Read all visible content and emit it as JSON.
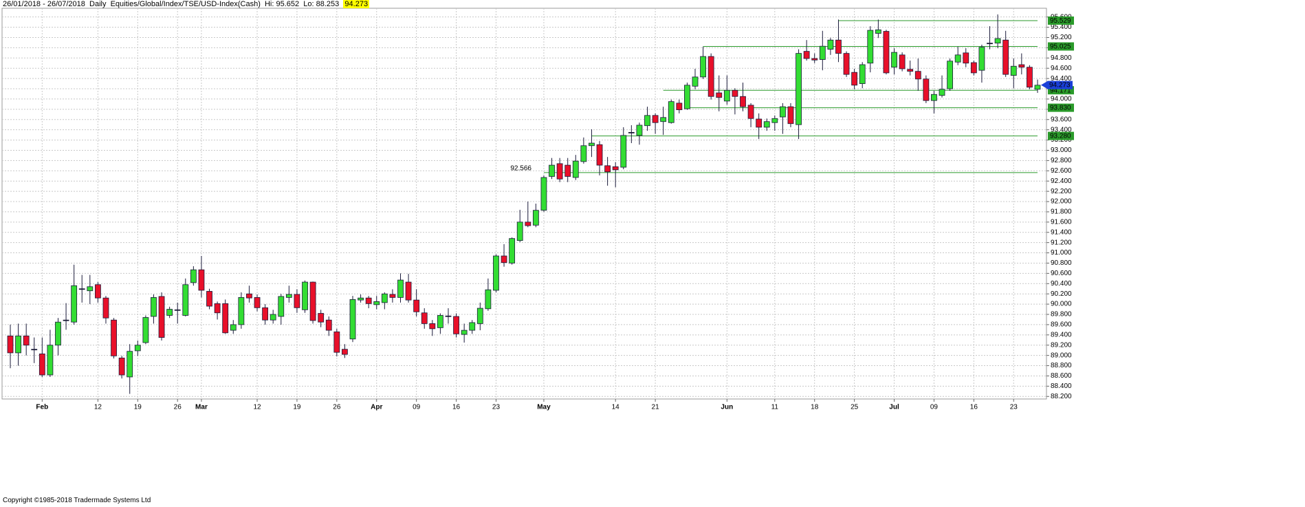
{
  "header": {
    "range": "26/01/2018 - 26/07/2018",
    "interval": "Daily",
    "symbol": "Equities/Global/Index/TSE/USD-Index(Cash)",
    "hi_label": "Hi:",
    "hi": 95.652,
    "lo_label": "Lo:",
    "lo": 88.253
  },
  "footer": "Copyright ©1985-2018 Tradermade Systems Ltd",
  "chart_data": {
    "type": "candlestick",
    "categories": [
      null,
      null,
      null,
      null,
      "Feb",
      null,
      null,
      null,
      null,
      null,
      null,
      "12",
      null,
      null,
      null,
      null,
      "19",
      null,
      null,
      null,
      null,
      "26",
      null,
      null,
      "Mar",
      null,
      null,
      null,
      null,
      null,
      null,
      "12",
      null,
      null,
      null,
      null,
      "19",
      null,
      null,
      null,
      null,
      "26",
      null,
      null,
      null,
      null,
      "Apr",
      null,
      null,
      null,
      null,
      "09",
      null,
      null,
      null,
      null,
      "16",
      null,
      null,
      null,
      null,
      "23",
      null,
      null,
      null,
      null,
      null,
      "May",
      null,
      null,
      null,
      null,
      null,
      null,
      null,
      null,
      "14",
      null,
      null,
      null,
      null,
      "21",
      null,
      null,
      null,
      null,
      null,
      null,
      null,
      null,
      "Jun",
      null,
      null,
      null,
      null,
      null,
      "11",
      null,
      null,
      null,
      null,
      "18",
      null,
      null,
      null,
      null,
      "25",
      null,
      null,
      null,
      null,
      "Jul",
      null,
      null,
      null,
      null,
      "09",
      null,
      null,
      null,
      null,
      "16",
      null,
      null,
      null,
      null,
      "23",
      null,
      null,
      null
    ],
    "open": [
      89.38,
      89.05,
      89.38,
      89.12,
      89.03,
      88.62,
      89.2,
      89.69,
      89.65,
      90.3,
      90.26,
      90.38,
      90.12,
      89.69,
      88.95,
      88.58,
      89.09,
      89.25,
      89.76,
      90.15,
      89.78,
      89.89,
      89.78,
      90.42,
      90.67,
      90.25,
      90.01,
      90.01,
      89.49,
      89.6,
      90.2,
      90.13,
      89.93,
      89.69,
      89.76,
      90.13,
      90.19,
      89.89,
      90.43,
      89.82,
      89.69,
      89.46,
      89.12,
      89.32,
      90.08,
      90.12,
      89.99,
      90.03,
      90.19,
      90.13,
      90.43,
      90.08,
      89.83,
      89.62,
      89.54,
      89.77,
      89.76,
      89.41,
      89.49,
      89.62,
      89.91,
      90.27,
      90.94,
      90.8,
      91.24,
      91.6,
      91.54,
      91.83,
      92.49,
      92.74,
      92.71,
      92.47,
      92.78,
      93.09,
      93.11,
      92.7,
      92.68,
      92.67,
      93.35,
      93.29,
      93.48,
      93.68,
      93.56,
      93.54,
      93.92,
      93.81,
      94.25,
      94.43,
      94.83,
      94.12,
      93.96,
      94.17,
      94.05,
      93.88,
      93.61,
      93.45,
      93.54,
      93.65,
      93.85,
      93.5,
      94.93,
      94.79,
      94.77,
      94.97,
      95.15,
      94.89,
      94.52,
      94.3,
      94.7,
      95.28,
      95.32,
      94.62,
      94.86,
      94.58,
      94.54,
      94.39,
      93.97,
      94.07,
      94.2,
      94.72,
      94.9,
      94.71,
      94.56,
      95.09,
      95.09,
      95.15,
      94.46,
      94.67,
      94.62,
      94.19
    ],
    "high": [
      89.6,
      89.62,
      89.62,
      89.35,
      89.35,
      89.5,
      89.73,
      90.02,
      90.77,
      90.57,
      90.57,
      90.43,
      90.16,
      89.73,
      88.99,
      89.22,
      89.29,
      89.78,
      90.19,
      90.23,
      89.95,
      90.03,
      90.5,
      90.74,
      90.94,
      90.3,
      90.05,
      90.09,
      89.69,
      90.23,
      90.36,
      90.19,
      90.0,
      89.89,
      90.2,
      90.36,
      90.29,
      90.46,
      90.44,
      89.89,
      89.76,
      89.52,
      89.22,
      90.16,
      90.19,
      90.16,
      90.16,
      90.23,
      90.29,
      90.6,
      90.59,
      90.29,
      89.92,
      89.69,
      89.82,
      89.92,
      89.82,
      89.62,
      89.69,
      90.03,
      90.5,
      90.97,
      91.17,
      91.3,
      91.84,
      92.0,
      91.96,
      92.51,
      92.85,
      92.85,
      92.85,
      92.91,
      93.25,
      93.41,
      93.18,
      92.87,
      92.77,
      93.45,
      93.49,
      93.54,
      93.85,
      93.72,
      93.85,
      93.99,
      93.99,
      94.32,
      94.59,
      95.02,
      94.89,
      94.46,
      94.46,
      94.21,
      94.32,
      93.92,
      93.72,
      93.62,
      93.68,
      93.92,
      93.92,
      94.97,
      95.15,
      94.89,
      95.33,
      95.19,
      95.55,
      94.93,
      94.59,
      94.72,
      95.42,
      95.55,
      95.35,
      94.99,
      94.91,
      94.75,
      94.79,
      94.46,
      94.16,
      94.46,
      94.79,
      95.02,
      94.99,
      94.75,
      95.06,
      95.42,
      95.65,
      95.33,
      94.79,
      94.89,
      94.66,
      94.38
    ],
    "low": [
      88.75,
      88.8,
      89.0,
      88.85,
      88.58,
      88.58,
      89.0,
      89.5,
      89.6,
      90.03,
      90.0,
      90.03,
      89.62,
      88.94,
      88.55,
      88.25,
      88.99,
      89.22,
      89.62,
      89.29,
      89.73,
      89.62,
      89.76,
      90.36,
      90.13,
      89.9,
      89.7,
      89.42,
      89.42,
      89.52,
      90.03,
      89.86,
      89.6,
      89.62,
      89.6,
      90.03,
      89.83,
      89.83,
      89.62,
      89.55,
      89.38,
      88.98,
      88.95,
      89.26,
      90.03,
      89.92,
      89.9,
      89.9,
      90.03,
      90.03,
      90.03,
      89.76,
      89.52,
      89.38,
      89.42,
      89.62,
      89.35,
      89.25,
      89.42,
      89.49,
      89.87,
      90.23,
      90.73,
      90.77,
      91.21,
      91.5,
      91.5,
      91.8,
      92.44,
      92.38,
      92.38,
      92.42,
      92.74,
      92.87,
      92.51,
      92.31,
      92.28,
      92.63,
      93.14,
      93.11,
      93.38,
      93.32,
      93.3,
      93.52,
      93.72,
      93.79,
      94.19,
      94.39,
      93.99,
      93.76,
      93.89,
      93.7,
      93.76,
      93.45,
      93.22,
      93.38,
      93.38,
      93.32,
      93.45,
      93.22,
      94.75,
      94.7,
      94.56,
      94.86,
      94.72,
      94.43,
      94.19,
      94.21,
      94.52,
      95.19,
      94.48,
      94.48,
      94.54,
      94.46,
      94.16,
      93.92,
      93.72,
      94.03,
      94.16,
      94.66,
      94.62,
      94.46,
      94.32,
      94.97,
      94.99,
      94.43,
      94.21,
      94.48,
      94.19,
      94.12
    ],
    "close": [
      89.05,
      89.38,
      89.2,
      89.12,
      88.62,
      89.2,
      89.65,
      89.69,
      90.36,
      90.3,
      90.34,
      90.12,
      89.73,
      88.99,
      88.62,
      89.08,
      89.2,
      89.74,
      90.13,
      89.35,
      89.9,
      89.89,
      90.38,
      90.67,
      90.27,
      89.96,
      89.83,
      89.44,
      89.6,
      90.13,
      90.12,
      89.93,
      89.69,
      89.8,
      90.15,
      90.19,
      89.93,
      90.43,
      89.68,
      89.65,
      89.49,
      89.06,
      89.02,
      90.09,
      90.12,
      90.01,
      90.05,
      90.2,
      90.13,
      90.47,
      90.08,
      89.85,
      89.62,
      89.52,
      89.78,
      89.77,
      89.42,
      89.49,
      89.64,
      89.92,
      90.28,
      90.94,
      90.81,
      91.28,
      91.6,
      91.53,
      91.83,
      92.47,
      92.71,
      92.44,
      92.49,
      92.79,
      93.09,
      93.14,
      92.71,
      92.58,
      92.62,
      93.29,
      93.35,
      93.49,
      93.68,
      93.54,
      93.64,
      93.95,
      93.79,
      94.27,
      94.43,
      94.83,
      94.05,
      94.03,
      94.17,
      94.05,
      93.85,
      93.62,
      93.45,
      93.56,
      93.62,
      93.85,
      93.52,
      94.89,
      94.79,
      94.76,
      95.03,
      95.15,
      94.89,
      94.48,
      94.27,
      94.67,
      95.34,
      95.35,
      94.51,
      94.91,
      94.59,
      94.54,
      94.39,
      93.97,
      94.09,
      94.19,
      94.74,
      94.86,
      94.7,
      94.51,
      95.01,
      95.09,
      95.18,
      94.48,
      94.64,
      94.62,
      94.23,
      94.27
    ],
    "up_color": "#33dd33",
    "down_color": "#e8102a",
    "levels": [
      {
        "value": 95.529,
        "label": "95.529",
        "start": 104,
        "label_position": "axis"
      },
      {
        "value": 95.025,
        "label": "95.025",
        "start": 87,
        "label_position": "axis"
      },
      {
        "value": 94.171,
        "label": "94.171",
        "start": 82,
        "label_position": "axis"
      },
      {
        "value": 93.83,
        "label": "93.830",
        "start": 85,
        "label_position": "axis"
      },
      {
        "value": 93.28,
        "label": "93.280",
        "start": 73,
        "label_position": "axis"
      },
      {
        "value": 92.566,
        "label": "92.566",
        "start": 67,
        "label_position": "start"
      }
    ],
    "level_color": "#2a9a2a",
    "last": {
      "value": 94.273,
      "label": "94.273"
    },
    "last_color": "#1a3fd8",
    "ylim": [
      88.15,
      95.77
    ],
    "yticks": [
      {
        "value": 88.2,
        "label": "88.200"
      },
      {
        "value": 88.4,
        "label": "88.400"
      },
      {
        "value": 88.6,
        "label": "88.600"
      },
      {
        "value": 88.8,
        "label": "88.800"
      },
      {
        "value": 89.0,
        "label": "89.000"
      },
      {
        "value": 89.2,
        "label": "89.200"
      },
      {
        "value": 89.4,
        "label": "89.400"
      },
      {
        "value": 89.6,
        "label": "89.600"
      },
      {
        "value": 89.8,
        "label": "89.800"
      },
      {
        "value": 90.0,
        "label": "90.000"
      },
      {
        "value": 90.2,
        "label": "90.200"
      },
      {
        "value": 90.4,
        "label": "90.400"
      },
      {
        "value": 90.6,
        "label": "90.600"
      },
      {
        "value": 90.8,
        "label": "90.800"
      },
      {
        "value": 91.0,
        "label": "91.000"
      },
      {
        "value": 91.2,
        "label": "91.200"
      },
      {
        "value": 91.4,
        "label": "91.400"
      },
      {
        "value": 91.6,
        "label": "91.600"
      },
      {
        "value": 91.8,
        "label": "91.800"
      },
      {
        "value": 92.0,
        "label": "92.000"
      },
      {
        "value": 92.2,
        "label": "92.200"
      },
      {
        "value": 92.4,
        "label": "92.400"
      },
      {
        "value": 92.6,
        "label": "92.600"
      },
      {
        "value": 92.8,
        "label": "92.800"
      },
      {
        "value": 93.0,
        "label": "93.000"
      },
      {
        "value": 93.2,
        "label": "93.200"
      },
      {
        "value": 93.4,
        "label": "93.400"
      },
      {
        "value": 93.6,
        "label": "93.600"
      },
      {
        "value": 93.8,
        "label": "93.800"
      },
      {
        "value": 94.0,
        "label": "94.000"
      },
      {
        "value": 94.2,
        "label": "94.200"
      },
      {
        "value": 94.4,
        "label": "94.400"
      },
      {
        "value": 94.6,
        "label": "94.600"
      },
      {
        "value": 94.8,
        "label": "94.800"
      },
      {
        "value": 95.0,
        "label": "95.000"
      },
      {
        "value": 95.2,
        "label": "95.200"
      },
      {
        "value": 95.4,
        "label": "95.400"
      },
      {
        "value": 95.6,
        "label": "95.600"
      }
    ],
    "grid": true
  }
}
